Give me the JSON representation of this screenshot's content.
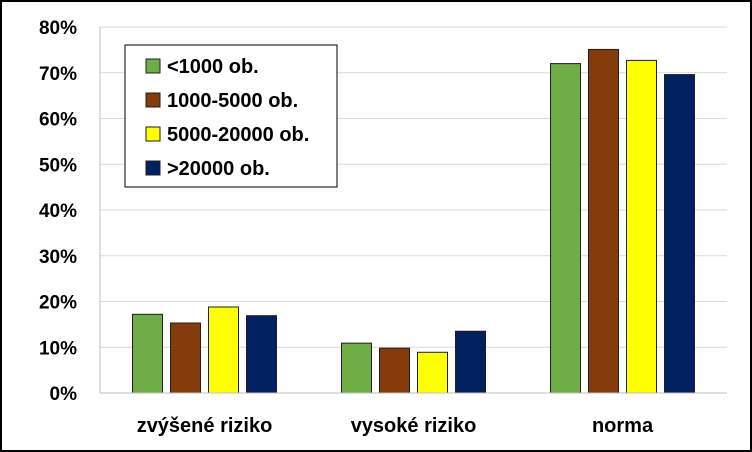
{
  "chart_data": {
    "type": "bar",
    "title": "",
    "xlabel": "",
    "ylabel": "",
    "categories": [
      "zvýšené riziko",
      "vysoké riziko",
      "norma"
    ],
    "series": [
      {
        "name": "<1000 ob.",
        "color": "#70ad47",
        "values": [
          17.2,
          10.9,
          72.0
        ]
      },
      {
        "name": "1000-5000 ob.",
        "color": "#843c0c",
        "values": [
          15.3,
          9.8,
          75.1
        ]
      },
      {
        "name": "5000-20000 ob.",
        "color": "#ffff00",
        "values": [
          18.8,
          8.9,
          72.7
        ]
      },
      {
        "name": ">20000 ob.",
        "color": "#002060",
        "values": [
          16.9,
          13.5,
          69.6
        ]
      }
    ],
    "ylim": [
      0,
      80
    ],
    "yticks": [
      "0%",
      "10%",
      "20%",
      "30%",
      "40%",
      "50%",
      "60%",
      "70%",
      "80%"
    ],
    "grid": true,
    "legend_position": "top-left"
  }
}
